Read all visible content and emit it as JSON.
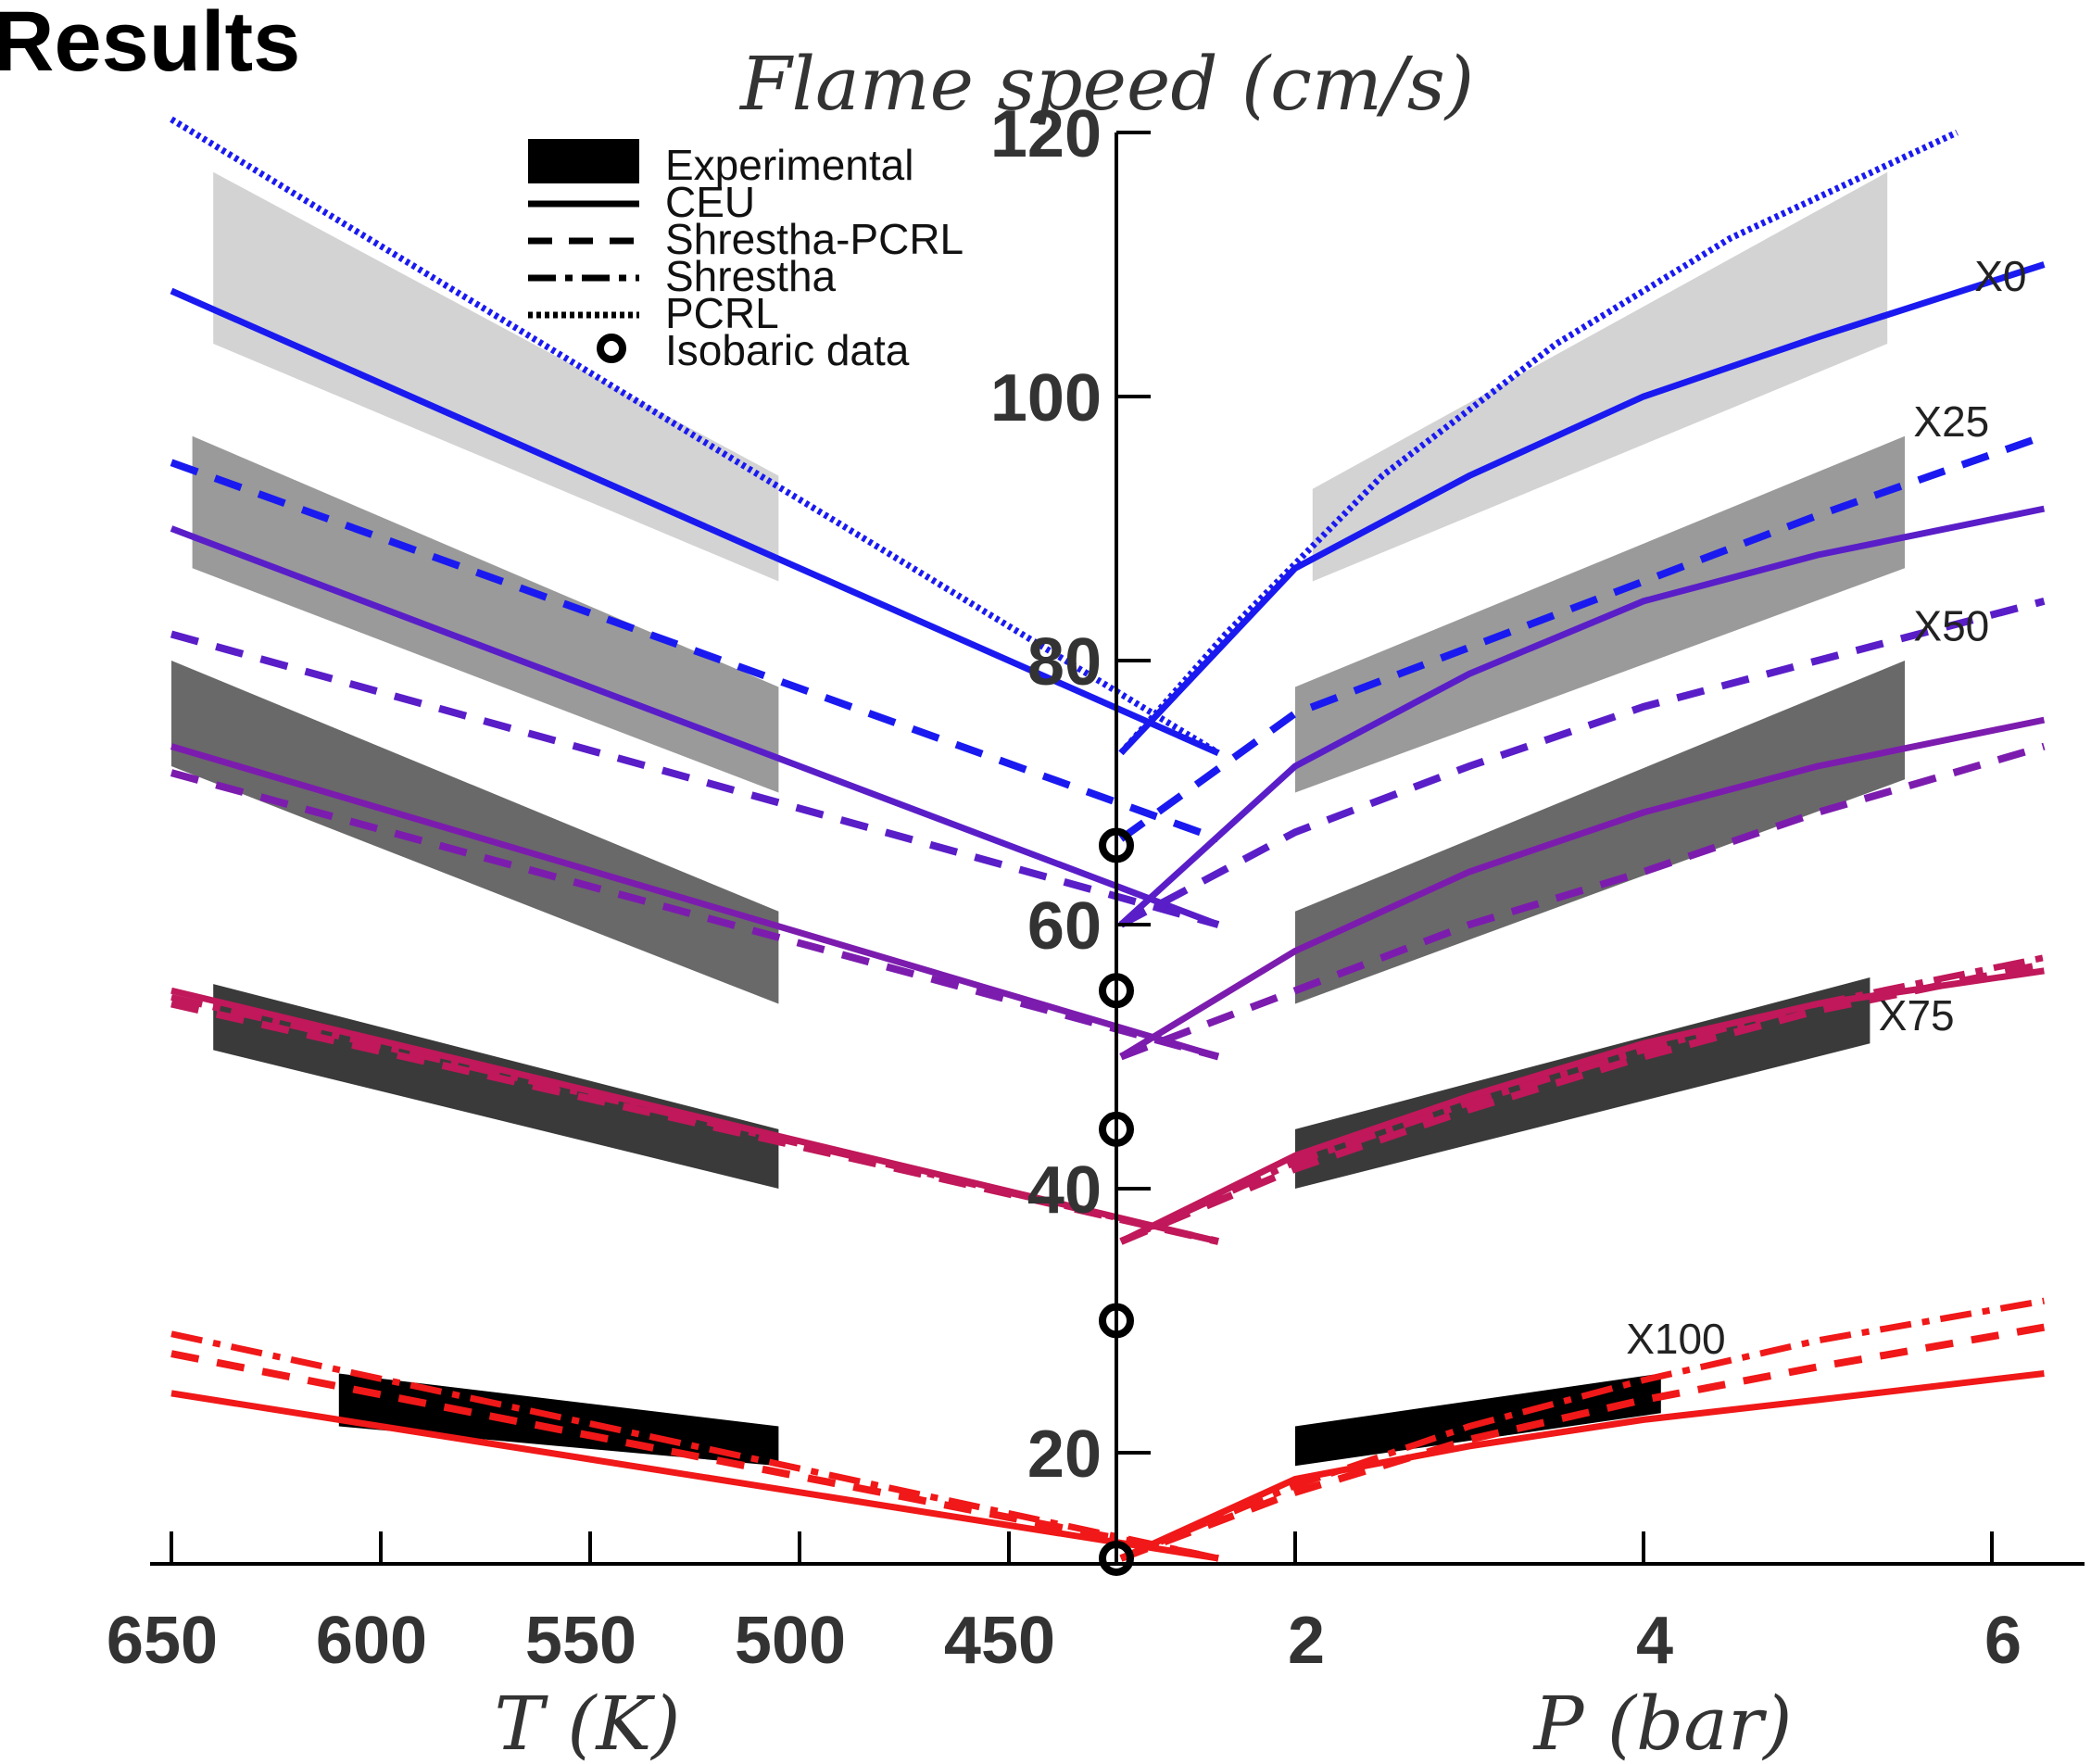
{
  "slide_title": "Results",
  "chart_data": {
    "type": "line",
    "title": "Flame speed (cm/s)",
    "left_panel": {
      "xlabel": "T (K)",
      "xlim": [
        650,
        400
      ],
      "xticks": [
        650,
        600,
        550,
        500,
        450
      ],
      "tick_labels": [
        "650",
        "600",
        "550",
        "500",
        "450"
      ]
    },
    "right_panel": {
      "xlabel": "P (bar)",
      "xlim": [
        1,
        6.3
      ],
      "xticks": [
        2,
        4,
        6
      ],
      "tick_labels": [
        "2",
        "4",
        "6"
      ]
    },
    "ylim": [
      4,
      120
    ],
    "yticks": [
      20,
      40,
      60,
      80,
      100,
      120
    ],
    "ytick_labels": [
      "20",
      "40",
      "60",
      "80",
      "100",
      "120"
    ],
    "legend": {
      "position": "top-left",
      "entries": [
        {
          "label": "Experimental",
          "style": "band"
        },
        {
          "label": "CEU",
          "style": "solid"
        },
        {
          "label": "Shrestha-PCRL",
          "style": "dash"
        },
        {
          "label": "Shrestha",
          "style": "dashdot"
        },
        {
          "label": "PCRL",
          "style": "dotted"
        },
        {
          "label": "Isobaric data",
          "style": "circle"
        }
      ]
    },
    "isobaric_data": [
      12,
      30,
      44.5,
      55,
      66
    ],
    "mixtures": [
      {
        "label": "X0",
        "color": "#1a1af0",
        "band_shade": "#d3d3d3",
        "band_T": {
          "x": [
            640,
            505
          ],
          "low": [
            104,
            86
          ],
          "high": [
            117,
            94
          ]
        },
        "band_P": {
          "x": [
            2.1,
            5.4
          ],
          "low": [
            86,
            104
          ],
          "high": [
            93,
            117
          ]
        },
        "series": [
          {
            "style": "solid",
            "T_x": [
              650,
              400
            ],
            "T_y": [
              108,
              73
            ],
            "P_x": [
              1,
              2,
              3,
              4,
              5,
              6.3
            ],
            "P_y": [
              73,
              87,
              94,
              100,
              104.5,
              110
            ]
          },
          {
            "style": "dash",
            "T_x": [
              650,
              400
            ],
            "T_y": [
              95,
              66.5
            ],
            "P_x": [
              1,
              2,
              3,
              4,
              5,
              6.3
            ],
            "P_y": [
              66.5,
              76,
              81,
              86,
              91,
              97
            ]
          },
          {
            "style": "dotted",
            "T_x": [
              650,
              400
            ],
            "T_y": [
              121,
              73
            ],
            "P_x": [
              1,
              1.6,
              2.5,
              3.5,
              4.5,
              5.8
            ],
            "P_y": [
              73,
              82,
              94,
              104,
              112,
              120
            ]
          }
        ]
      },
      {
        "label": "X25",
        "color": "#5a1ec8",
        "band_shade": "#9a9a9a",
        "band_T": {
          "x": [
            645,
            505
          ],
          "low": [
            87,
            70
          ],
          "high": [
            97,
            78
          ]
        },
        "band_P": {
          "x": [
            2.0,
            5.5
          ],
          "low": [
            70,
            87
          ],
          "high": [
            78,
            97
          ]
        },
        "series": [
          {
            "style": "solid",
            "T_x": [
              650,
              400
            ],
            "T_y": [
              90,
              60
            ],
            "P_x": [
              1,
              2,
              3,
              4,
              5,
              6.3
            ],
            "P_y": [
              60,
              72,
              79,
              84.5,
              88,
              91.5
            ]
          },
          {
            "style": "dash",
            "T_x": [
              650,
              400
            ],
            "T_y": [
              82,
              60
            ],
            "P_x": [
              1,
              2,
              3,
              4,
              5,
              6.3
            ],
            "P_y": [
              60,
              67,
              72,
              76.5,
              80,
              84.5
            ]
          }
        ]
      },
      {
        "label": "X50",
        "color": "#7c1cae",
        "band_shade": "#696969",
        "band_T": {
          "x": [
            650,
            505
          ],
          "low": [
            72,
            54
          ],
          "high": [
            80,
            61
          ]
        },
        "band_P": {
          "x": [
            2.0,
            5.5
          ],
          "low": [
            54,
            71
          ],
          "high": [
            61,
            80
          ]
        },
        "series": [
          {
            "style": "solid",
            "T_x": [
              650,
              400
            ],
            "T_y": [
              73.5,
              50
            ],
            "P_x": [
              1,
              2,
              3,
              4,
              5,
              6.3
            ],
            "P_y": [
              50,
              58,
              64,
              68.5,
              72,
              75.5
            ]
          },
          {
            "style": "dash",
            "T_x": [
              650,
              400
            ],
            "T_y": [
              71.5,
              50
            ],
            "P_x": [
              1,
              2,
              3,
              4,
              5,
              6.3
            ],
            "P_y": [
              50,
              55,
              60,
              64,
              68.5,
              73.5
            ]
          }
        ]
      },
      {
        "label": "X75",
        "color": "#c0185a",
        "band_shade": "#3a3a3a",
        "band_T": {
          "x": [
            640,
            505
          ],
          "low": [
            50.5,
            40
          ],
          "high": [
            55.5,
            44.5
          ]
        },
        "band_P": {
          "x": [
            2.0,
            5.3
          ],
          "low": [
            40,
            51
          ],
          "high": [
            44.5,
            56
          ]
        },
        "series": [
          {
            "style": "solid",
            "T_x": [
              650,
              400
            ],
            "T_y": [
              55,
              36
            ],
            "P_x": [
              1,
              2,
              3,
              4,
              5,
              6.3
            ],
            "P_y": [
              36,
              42.5,
              47,
              51,
              54,
              56.5
            ]
          },
          {
            "style": "dash",
            "T_x": [
              650,
              400
            ],
            "T_y": [
              54,
              36
            ],
            "P_x": [
              1,
              2,
              3,
              4,
              5,
              6.3
            ],
            "P_y": [
              36,
              41.5,
              46,
              50,
              53.5,
              57
            ]
          },
          {
            "style": "dashdot",
            "T_x": [
              650,
              400
            ],
            "T_y": [
              54.5,
              36
            ],
            "P_x": [
              1,
              2,
              3,
              4,
              5,
              6.3
            ],
            "P_y": [
              36,
              42,
              46.5,
              50.5,
              54,
              57.5
            ]
          }
        ]
      },
      {
        "label": "X100",
        "color": "#f01818",
        "band_shade": "#000000",
        "band_T": {
          "x": [
            610,
            505
          ],
          "low": [
            22,
            19
          ],
          "high": [
            26,
            22
          ]
        },
        "band_P": {
          "x": [
            2.0,
            4.1
          ],
          "low": [
            19,
            23
          ],
          "high": [
            22,
            26
          ]
        },
        "series": [
          {
            "style": "solid",
            "T_x": [
              650,
              400
            ],
            "T_y": [
              24.5,
              12
            ],
            "P_x": [
              1,
              2,
              3,
              4,
              5,
              6.3
            ],
            "P_y": [
              12,
              18,
              20.5,
              22.5,
              24,
              26
            ]
          },
          {
            "style": "dash",
            "T_x": [
              650,
              400
            ],
            "T_y": [
              27.5,
              12
            ],
            "P_x": [
              1,
              2,
              3,
              4,
              5,
              6.3
            ],
            "P_y": [
              12,
              17,
              21,
              24,
              26.5,
              29.5
            ]
          },
          {
            "style": "dashdot",
            "T_x": [
              650,
              400
            ],
            "T_y": [
              29,
              12
            ],
            "P_x": [
              1,
              2,
              3,
              4,
              5,
              6.3
            ],
            "P_y": [
              12,
              17.5,
              22,
              25.5,
              28.5,
              31.5
            ]
          }
        ]
      }
    ]
  }
}
